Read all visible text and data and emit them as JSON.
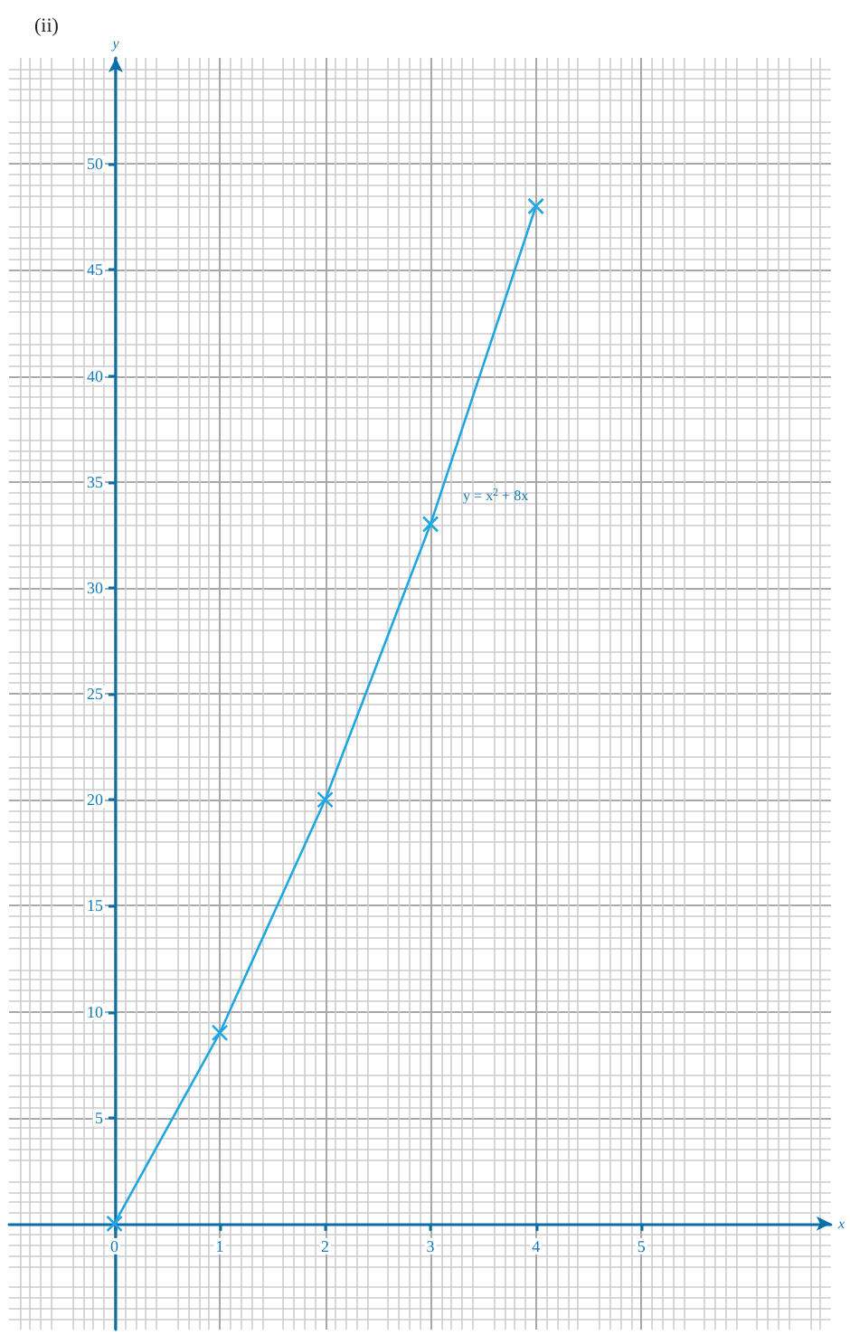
{
  "chart_data": {
    "type": "line",
    "title": "(ii)",
    "xlabel": "x",
    "ylabel": "y",
    "x": [
      0,
      1,
      2,
      3,
      4
    ],
    "series": [
      {
        "color": "#1ea7e1",
        "values": [
          0,
          9,
          20,
          33,
          48
        ]
      }
    ],
    "xlim": [
      -1,
      6.8
    ],
    "ylim": [
      -5,
      55
    ],
    "xticks": [
      0,
      1,
      2,
      3,
      4,
      5
    ],
    "yticks": [
      5,
      10,
      15,
      20,
      25,
      30,
      35,
      40,
      45,
      50
    ],
    "grid": true,
    "marker": "cross",
    "line_style": "solid",
    "annotations": [
      {
        "text": "y = x$^{2}$ + 8x",
        "x": 3,
        "y": 33
      }
    ]
  }
}
